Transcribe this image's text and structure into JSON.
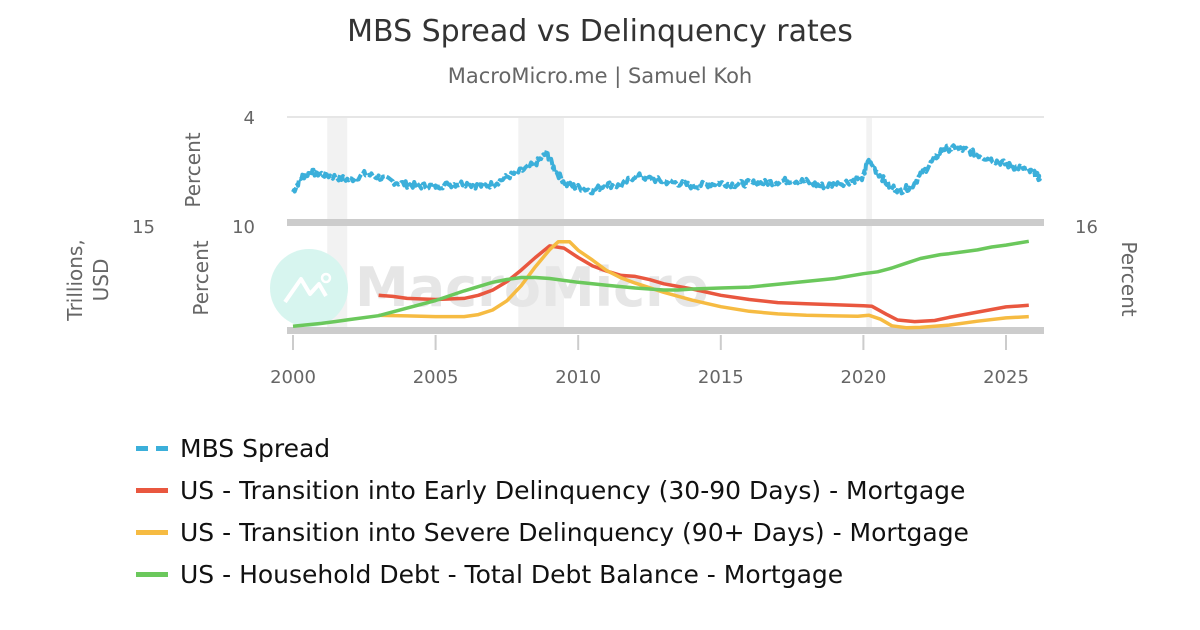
{
  "header": {
    "title": "MBS Spread vs Delinquency rates",
    "subtitle": "MacroMicro.me | Samuel Koh"
  },
  "watermark": "MacroMicro",
  "axes": {
    "top_left_name": "Percent",
    "top_left_top_tick": "4",
    "bottom_left_inner_name": "Percent",
    "bottom_left_inner_top_tick": "10",
    "bottom_left_outer_name": "Trillions, USD",
    "bottom_left_outer_name_line1": "Trillions,",
    "bottom_left_outer_name_line2": "USD",
    "bottom_left_outer_top_tick": "15",
    "bottom_right_name": "Percent",
    "bottom_right_top_tick": "16",
    "x_ticks": [
      "2000",
      "2005",
      "2010",
      "2015",
      "2020",
      "2025"
    ]
  },
  "legend": [
    {
      "label": "MBS Spread",
      "color": "#3bafda",
      "style": "dashed"
    },
    {
      "label": "US - Transition into Early Delinquency (30-90 Days) - Mortgage",
      "color": "#e9573f",
      "style": "solid"
    },
    {
      "label": "US - Transition into Severe Delinquency (90+ Days) - Mortgage",
      "color": "#f6bb42",
      "style": "solid"
    },
    {
      "label": "US - Household Debt - Total Debt Balance - Mortgage",
      "color": "#6bc85c",
      "style": "solid"
    }
  ],
  "chart_data": {
    "type": "line",
    "title": "MBS Spread vs Delinquency rates",
    "subtitle": "MacroMicro.me | Samuel Koh",
    "xlabel": "",
    "xlim": [
      2000,
      2026.3
    ],
    "x_ticks": [
      2000,
      2005,
      2010,
      2015,
      2020,
      2025
    ],
    "recessions": [
      [
        2001.2,
        2001.9
      ],
      [
        2007.9,
        2009.5
      ],
      [
        2020.1,
        2020.3
      ]
    ],
    "legend_position": "bottom",
    "grid": false,
    "panels": [
      {
        "name": "top",
        "axes": [
          {
            "side": "left",
            "label": "Percent",
            "ylim": [
              0.5,
              4
            ],
            "top_tick": 4
          }
        ],
        "series": [
          {
            "name": "MBS Spread",
            "axis": "left",
            "color": "#3bafda",
            "style": "dashed",
            "x": [
              2000.0,
              2000.3,
              2000.6,
              2001.0,
              2001.5,
              2002.0,
              2002.5,
              2003.0,
              2003.5,
              2004.0,
              2004.5,
              2005.0,
              2005.5,
              2006.0,
              2006.5,
              2007.0,
              2007.5,
              2008.0,
              2008.5,
              2008.9,
              2009.2,
              2009.6,
              2010.0,
              2010.5,
              2011.0,
              2011.5,
              2012.0,
              2012.5,
              2013.0,
              2013.5,
              2014.0,
              2014.5,
              2015.0,
              2015.5,
              2016.0,
              2016.5,
              2017.0,
              2017.5,
              2018.0,
              2018.5,
              2019.0,
              2019.5,
              2020.0,
              2020.15,
              2020.5,
              2020.9,
              2021.3,
              2021.7,
              2022.0,
              2022.4,
              2022.8,
              2023.2,
              2023.6,
              2024.0,
              2024.4,
              2024.8,
              2025.2,
              2025.6,
              2026.0,
              2026.2
            ],
            "values": [
              1.5,
              2.0,
              2.15,
              2.1,
              2.0,
              1.9,
              2.1,
              2.0,
              1.85,
              1.75,
              1.7,
              1.7,
              1.75,
              1.8,
              1.7,
              1.75,
              2.0,
              2.2,
              2.45,
              2.8,
              2.2,
              1.75,
              1.65,
              1.55,
              1.75,
              1.7,
              2.05,
              1.95,
              1.85,
              1.8,
              1.7,
              1.75,
              1.8,
              1.75,
              1.8,
              1.8,
              1.85,
              1.9,
              1.85,
              1.7,
              1.75,
              1.85,
              2.0,
              2.55,
              2.15,
              1.7,
              1.55,
              1.7,
              2.05,
              2.5,
              2.95,
              2.95,
              2.9,
              2.75,
              2.6,
              2.5,
              2.35,
              2.3,
              2.1,
              1.95
            ]
          }
        ]
      },
      {
        "name": "bottom",
        "axes": [
          {
            "side": "left-inner",
            "label": "Percent",
            "ylim": [
              0,
              10
            ],
            "top_tick": 10
          },
          {
            "side": "left-outer",
            "label": "Trillions, USD",
            "ylim": [
              4,
              15
            ],
            "top_tick": 15
          },
          {
            "side": "right",
            "label": "Percent",
            "ylim": [
              0,
              16
            ],
            "top_tick": 16
          }
        ],
        "series": [
          {
            "name": "US - Transition into Early Delinquency (30-90 Days) - Mortgage",
            "axis": "left-inner",
            "color": "#e9573f",
            "style": "solid",
            "x": [
              2003.0,
              2003.5,
              2004.0,
              2005.0,
              2006.0,
              2006.5,
              2007.0,
              2007.5,
              2008.0,
              2008.5,
              2009.0,
              2009.5,
              2010.0,
              2010.5,
              2011.0,
              2011.5,
              2012.0,
              2012.5,
              2013.0,
              2014.0,
              2015.0,
              2016.0,
              2017.0,
              2018.0,
              2019.0,
              2020.0,
              2020.3,
              2020.8,
              2021.2,
              2021.8,
              2022.5,
              2023.0,
              2024.0,
              2025.0,
              2025.8
            ],
            "values": [
              3.4,
              3.3,
              3.1,
              3.0,
              3.1,
              3.4,
              3.9,
              4.7,
              5.8,
              7.0,
              8.1,
              7.9,
              7.0,
              6.2,
              5.7,
              5.3,
              5.2,
              4.9,
              4.5,
              4.0,
              3.4,
              3.0,
              2.7,
              2.6,
              2.5,
              2.4,
              2.35,
              1.6,
              1.05,
              0.9,
              1.0,
              1.3,
              1.8,
              2.3,
              2.45
            ]
          },
          {
            "name": "US - Transition into Severe Delinquency (90+ Days) - Mortgage",
            "axis": "right",
            "color": "#f6bb42",
            "style": "solid",
            "x": [
              2003.0,
              2004.0,
              2005.0,
              2006.0,
              2006.5,
              2007.0,
              2007.5,
              2008.0,
              2008.5,
              2009.0,
              2009.3,
              2009.7,
              2010.0,
              2010.5,
              2011.0,
              2011.5,
              2012.0,
              2013.0,
              2014.0,
              2015.0,
              2016.0,
              2017.0,
              2018.0,
              2019.0,
              2019.8,
              2020.2,
              2020.6,
              2021.0,
              2021.5,
              2022.0,
              2023.0,
              2024.0,
              2025.0,
              2025.8
            ],
            "values": [
              2.4,
              2.3,
              2.2,
              2.2,
              2.5,
              3.2,
              4.6,
              6.9,
              9.8,
              12.4,
              13.6,
              13.6,
              12.3,
              10.8,
              9.2,
              8.1,
              7.3,
              5.9,
              4.7,
              3.7,
              3.0,
              2.6,
              2.4,
              2.3,
              2.25,
              2.4,
              1.8,
              0.8,
              0.5,
              0.55,
              0.9,
              1.5,
              2.0,
              2.2
            ]
          },
          {
            "name": "US - Household Debt - Total Debt Balance - Mortgage",
            "axis": "left-outer",
            "color": "#6bc85c",
            "style": "solid",
            "x": [
              2000.0,
              2001.0,
              2001.5,
              2002.0,
              2003.0,
              2004.0,
              2005.0,
              2006.0,
              2007.0,
              2007.5,
              2008.0,
              2008.5,
              2009.0,
              2010.0,
              2011.0,
              2012.0,
              2013.0,
              2013.5,
              2014.0,
              2015.0,
              2016.0,
              2017.0,
              2018.0,
              2019.0,
              2020.0,
              2020.5,
              2021.0,
              2021.5,
              2022.0,
              2022.7,
              2023.0,
              2024.0,
              2024.5,
              2025.0,
              2025.8
            ],
            "values": [
              4.5,
              4.8,
              5.0,
              5.2,
              5.6,
              6.4,
              7.2,
              8.2,
              9.1,
              9.4,
              9.6,
              9.6,
              9.5,
              9.1,
              8.8,
              8.5,
              8.3,
              8.3,
              8.4,
              8.5,
              8.6,
              8.9,
              9.2,
              9.5,
              10.0,
              10.2,
              10.6,
              11.1,
              11.6,
              12.0,
              12.1,
              12.5,
              12.8,
              13.0,
              13.4
            ]
          }
        ]
      }
    ]
  }
}
